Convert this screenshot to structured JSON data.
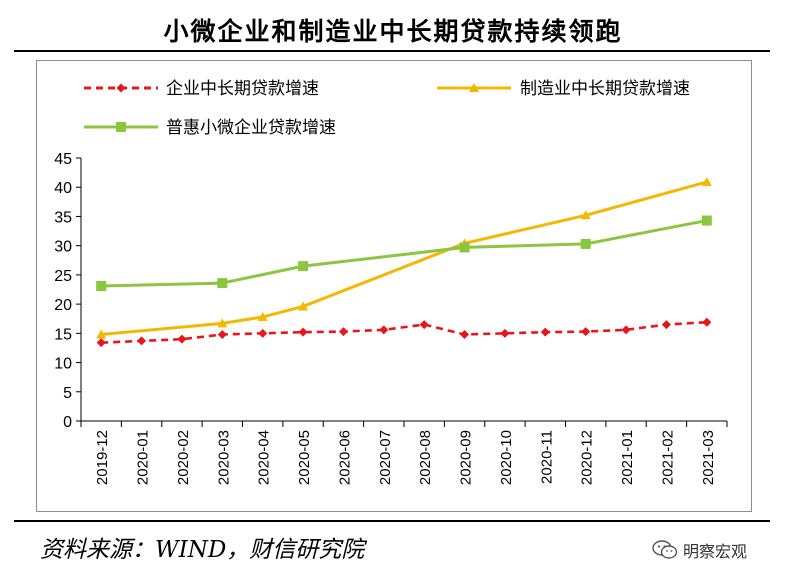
{
  "title": "小微企业和制造业中长期贷款持续领跑",
  "source": "资料来源：WIND，财信研究院",
  "watermark": "明察宏观",
  "watermark_icon": "wechat-icon",
  "colors": {
    "enterprise": "#e8161b",
    "manufacturing": "#f5b800",
    "smallmicro": "#8cc63f",
    "axis": "#000000"
  },
  "chart_data": {
    "type": "line",
    "title": "",
    "xlabel": "",
    "ylabel": "",
    "ylim": [
      0,
      45
    ],
    "yticks": [
      0,
      5,
      10,
      15,
      20,
      25,
      30,
      35,
      40,
      45
    ],
    "grid": false,
    "legend_placement": "top",
    "categories": [
      "2019-12",
      "2020-01",
      "2020-02",
      "2020-03",
      "2020-04",
      "2020-05",
      "2020-06",
      "2020-07",
      "2020-08",
      "2020-09",
      "2020-10",
      "2020-11",
      "2020-12",
      "2021-01",
      "2021-02",
      "2021-03"
    ],
    "series": [
      {
        "name": "企业中长期贷款增速",
        "style": "dashed",
        "marker": "diamond",
        "color": "#e8161b",
        "x": [
          "2019-12",
          "2020-01",
          "2020-02",
          "2020-03",
          "2020-04",
          "2020-05",
          "2020-06",
          "2020-07",
          "2020-08",
          "2020-09",
          "2020-10",
          "2020-11",
          "2020-12",
          "2021-01",
          "2021-02",
          "2021-03"
        ],
        "values": [
          13.4,
          13.7,
          14.0,
          14.8,
          15.0,
          15.2,
          15.3,
          15.6,
          16.5,
          14.8,
          15.0,
          15.2,
          15.3,
          15.6,
          16.5,
          16.9
        ]
      },
      {
        "name": "制造业中长期贷款增速",
        "style": "solid",
        "marker": "triangle",
        "color": "#f5b800",
        "x": [
          "2019-12",
          "2020-03",
          "2020-04",
          "2020-05",
          "2020-09",
          "2020-12",
          "2021-03"
        ],
        "values": [
          14.8,
          16.7,
          17.8,
          19.6,
          30.4,
          35.2,
          40.9
        ]
      },
      {
        "name": "普惠小微企业贷款增速",
        "style": "solid",
        "marker": "square",
        "color": "#8cc63f",
        "x": [
          "2019-12",
          "2020-03",
          "2020-05",
          "2020-09",
          "2020-12",
          "2021-03"
        ],
        "values": [
          23.1,
          23.6,
          26.5,
          29.7,
          30.3,
          34.3
        ]
      }
    ]
  }
}
